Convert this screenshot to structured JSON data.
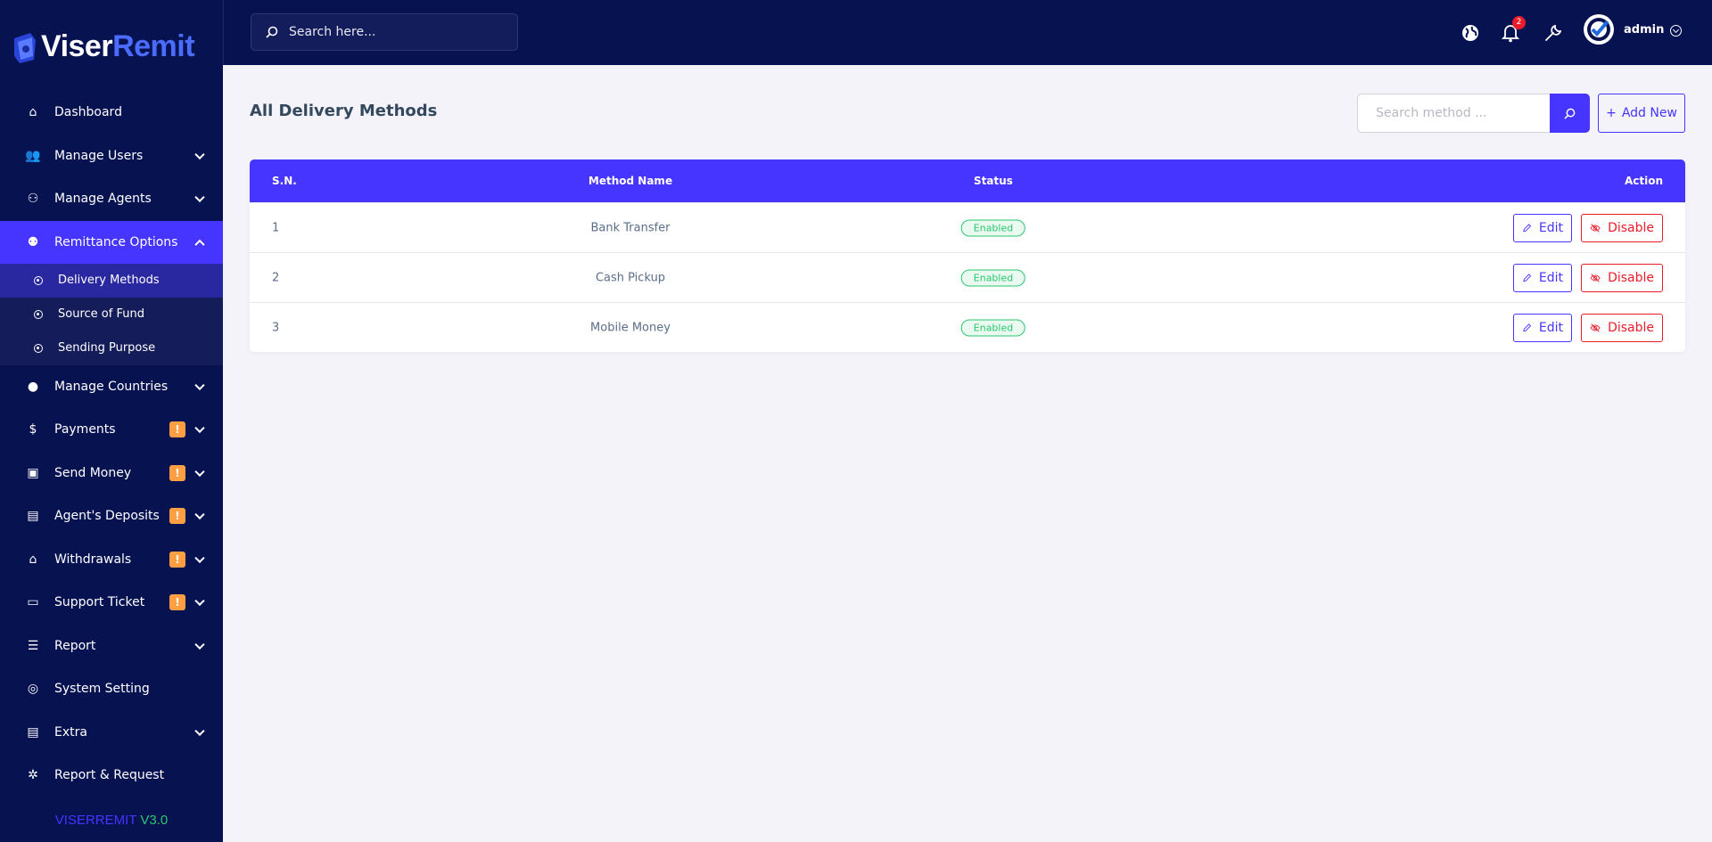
{
  "brand": {
    "logo_part1": "Viser",
    "logo_part2": "Remit",
    "version_name": "VISERREMIT",
    "version_num": "V3.0"
  },
  "topbar": {
    "search_placeholder": "Search here...",
    "notification_count": "2",
    "user_name": "admin"
  },
  "sidebar": {
    "items": [
      {
        "label": "Dashboard",
        "icon": "home-icon"
      },
      {
        "label": "Manage Users",
        "icon": "users-icon",
        "chevron": true
      },
      {
        "label": "Manage Agents",
        "icon": "agents-icon",
        "chevron": true
      },
      {
        "label": "Remittance Options",
        "icon": "remittance-icon",
        "chevron": true,
        "active": true,
        "children": [
          {
            "label": "Delivery Methods",
            "active": true
          },
          {
            "label": "Source of Fund"
          },
          {
            "label": "Sending Purpose"
          }
        ]
      },
      {
        "label": "Manage Countries",
        "icon": "globe-icon",
        "chevron": true
      },
      {
        "label": "Payments",
        "icon": "payment-hand-icon",
        "chevron": true,
        "warning": "!"
      },
      {
        "label": "Send Money",
        "icon": "money-screen-icon",
        "chevron": true,
        "warning": "!"
      },
      {
        "label": "Agent's Deposits",
        "icon": "deposit-document-icon",
        "chevron": true,
        "warning": "!"
      },
      {
        "label": "Withdrawals",
        "icon": "bank-icon",
        "chevron": true,
        "warning": "!"
      },
      {
        "label": "Support Ticket",
        "icon": "ticket-icon",
        "chevron": true,
        "warning": "!"
      },
      {
        "label": "Report",
        "icon": "list-icon",
        "chevron": true
      },
      {
        "label": "System Setting",
        "icon": "lifebuoy-icon"
      },
      {
        "label": "Extra",
        "icon": "server-icon",
        "chevron": true
      },
      {
        "label": "Report & Request",
        "icon": "bug-icon"
      }
    ]
  },
  "page": {
    "title": "All Delivery Methods",
    "search_placeholder": "Search method ...",
    "add_new_label": "Add New"
  },
  "table": {
    "headers": [
      "S.N.",
      "Method Name",
      "Status",
      "Action"
    ],
    "rows": [
      {
        "sn": "1",
        "name": "Bank Transfer",
        "status": "Enabled"
      },
      {
        "sn": "2",
        "name": "Cash Pickup",
        "status": "Enabled"
      },
      {
        "sn": "3",
        "name": "Mobile Money",
        "status": "Enabled"
      }
    ],
    "edit_label": "Edit",
    "disable_label": "Disable"
  },
  "colors": {
    "primary": "#4634ff",
    "sidebar": "#071251",
    "success": "#28c76f",
    "danger": "#ea1c2a",
    "warning": "#ff9f43"
  }
}
